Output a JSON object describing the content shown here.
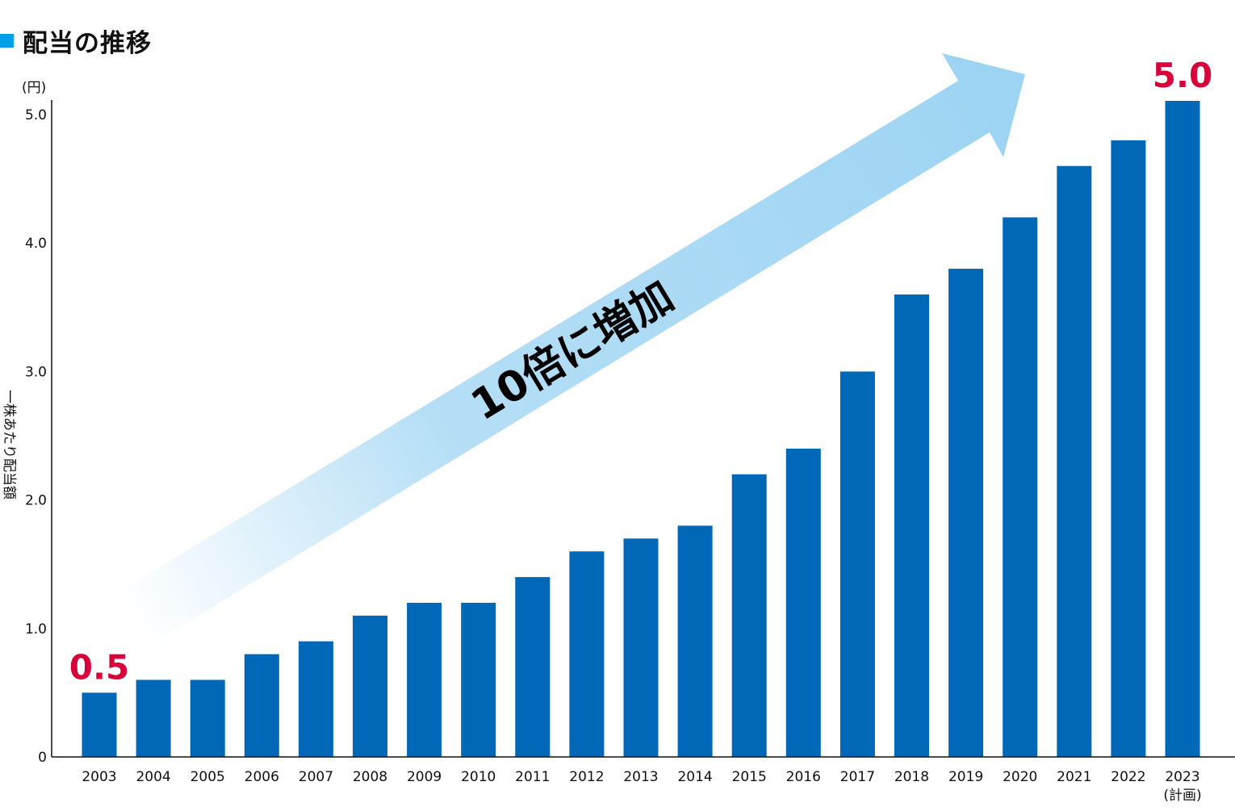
{
  "title": "配当の推移",
  "colors": {
    "bar": "#0068b7",
    "marker": "#00a0e9",
    "callout": "#d7003a",
    "arrow": "#9dd4f3"
  },
  "chart_data": {
    "type": "bar",
    "title": "配当の推移",
    "ylabel": "一株あたり配当額",
    "y_unit": "(円)",
    "ylim": [
      0,
      5.0
    ],
    "yticks": [
      "0",
      "1.0",
      "2.0",
      "3.0",
      "4.0",
      "5.0"
    ],
    "categories": [
      "2003",
      "2004",
      "2005",
      "2006",
      "2007",
      "2008",
      "2009",
      "2010",
      "2011",
      "2012",
      "2013",
      "2014",
      "2015",
      "2016",
      "2017",
      "2018",
      "2019",
      "2020",
      "2021",
      "2022",
      "2023"
    ],
    "category_sublabels": {
      "2023": "(計画)"
    },
    "values": [
      0.5,
      0.6,
      0.6,
      0.8,
      0.9,
      1.1,
      1.2,
      1.2,
      1.4,
      1.6,
      1.7,
      1.8,
      2.2,
      2.4,
      3.0,
      3.6,
      3.8,
      4.2,
      4.6,
      4.8,
      5.0
    ],
    "callouts": [
      {
        "category": "2003",
        "text": "0.5"
      },
      {
        "category": "2023",
        "text": "5.0"
      }
    ],
    "arrow_label": "10倍に増加",
    "grid": false
  }
}
